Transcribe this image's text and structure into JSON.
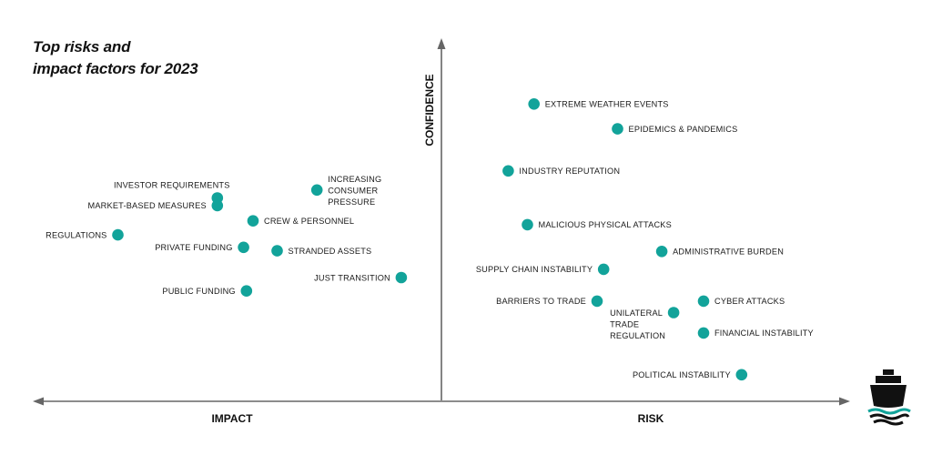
{
  "title_line1": "Top risks and",
  "title_line2": "impact factors for 2023",
  "colors": {
    "point": "#12a39a",
    "axis": "#666666",
    "text": "#1a1a1a",
    "logo": "#111111",
    "logo_accent": "#12a39a"
  },
  "icons": {
    "logo": "ship-icon"
  },
  "chart_data": {
    "type": "scatter",
    "title": "Top risks and impact factors for 2023",
    "axes": {
      "y_label": "CONFIDENCE",
      "x_left_label": "IMPACT",
      "x_right_label": "RISK"
    },
    "grid": false,
    "legend": "none",
    "xlim": [
      -100,
      100
    ],
    "ylim": [
      0,
      100
    ],
    "points": [
      {
        "label": "EXTREME WEATHER EVENTS",
        "x": 22.6,
        "y": 92.5,
        "side": "right"
      },
      {
        "label": "EPIDEMICS & PANDEMICS",
        "x": 43.0,
        "y": 84.7,
        "side": "right"
      },
      {
        "label": "INDUSTRY REPUTATION",
        "x": 16.3,
        "y": 71.5,
        "side": "right"
      },
      {
        "label": "MALICIOUS PHYSICAL ATTACKS",
        "x": 21.0,
        "y": 54.6,
        "side": "right"
      },
      {
        "label": "ADMINISTRATIVE BURDEN",
        "x": 53.8,
        "y": 46.2,
        "side": "right"
      },
      {
        "label": "SUPPLY CHAIN INSTABILITY",
        "x": 39.6,
        "y": 40.6,
        "side": "left"
      },
      {
        "label": "BARRIERS TO TRADE",
        "x": 38.0,
        "y": 30.6,
        "side": "left"
      },
      {
        "label": "UNILATERAL TRADE REGULATION",
        "x": 56.7,
        "y": 27.0,
        "side": "below-left",
        "lines": [
          "UNILATERAL",
          "TRADE",
          "REGULATION"
        ]
      },
      {
        "label": "CYBER ATTACKS",
        "x": 64.0,
        "y": 30.6,
        "side": "right"
      },
      {
        "label": "FINANCIAL INSTABILITY",
        "x": 64.0,
        "y": 20.6,
        "side": "right"
      },
      {
        "label": "POLITICAL INSTABILITY",
        "x": 73.3,
        "y": 7.5,
        "side": "left"
      },
      {
        "label": "INVESTOR REQUIREMENTS",
        "x": -54.7,
        "y": 63.0,
        "side": "above-left"
      },
      {
        "label": "MARKET-BASED MEASURES",
        "x": -54.7,
        "y": 60.6,
        "side": "left"
      },
      {
        "label": "INCREASING CONSUMER PRESSURE",
        "x": -30.4,
        "y": 65.5,
        "side": "right",
        "lines": [
          "INCREASING",
          "CONSUMER",
          "PRESSURE"
        ]
      },
      {
        "label": "CREW & PERSONNEL",
        "x": -46.0,
        "y": 55.8,
        "side": "right"
      },
      {
        "label": "REGULATIONS",
        "x": -79.0,
        "y": 51.4,
        "side": "left"
      },
      {
        "label": "PRIVATE FUNDING",
        "x": -48.3,
        "y": 47.5,
        "side": "left"
      },
      {
        "label": "STRANDED ASSETS",
        "x": -40.1,
        "y": 46.4,
        "side": "right"
      },
      {
        "label": "JUST TRANSITION",
        "x": -9.8,
        "y": 38.0,
        "side": "left"
      },
      {
        "label": "PUBLIC FUNDING",
        "x": -47.6,
        "y": 33.8,
        "side": "left"
      }
    ]
  }
}
